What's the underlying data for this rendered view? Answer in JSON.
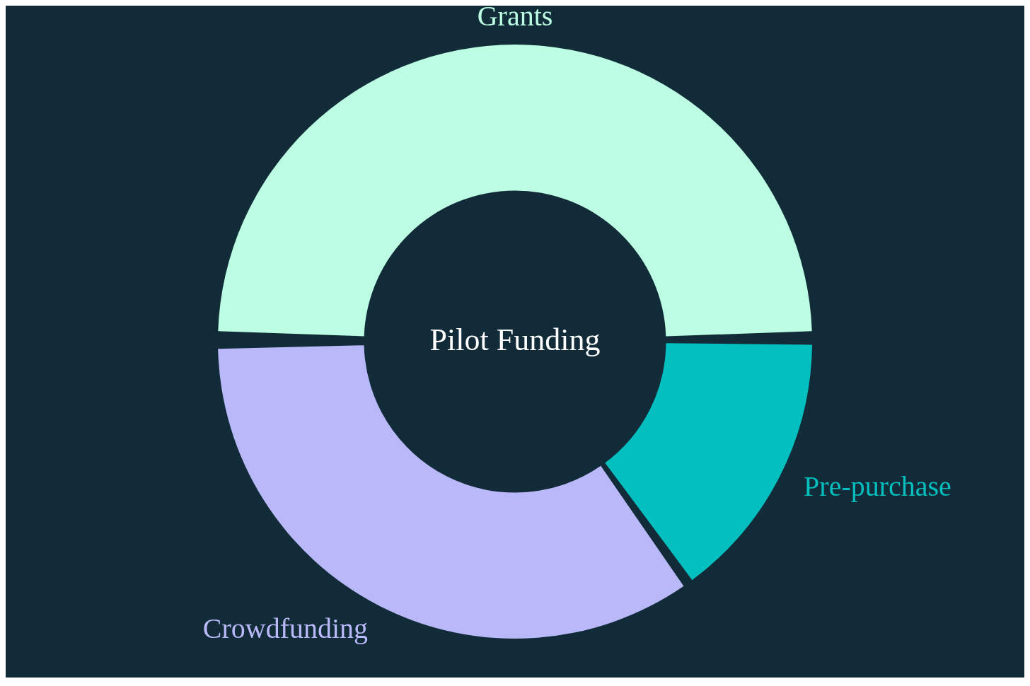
{
  "chart_data": {
    "type": "donut",
    "title": "Pilot Funding",
    "categories": [
      "Pre-purchase",
      "Crowdfunding",
      "Grants"
    ],
    "values": [
      15,
      35,
      50
    ],
    "colors": [
      "#04bfbf",
      "#b9b8f8",
      "#bdfde3"
    ],
    "legend": false
  }
}
